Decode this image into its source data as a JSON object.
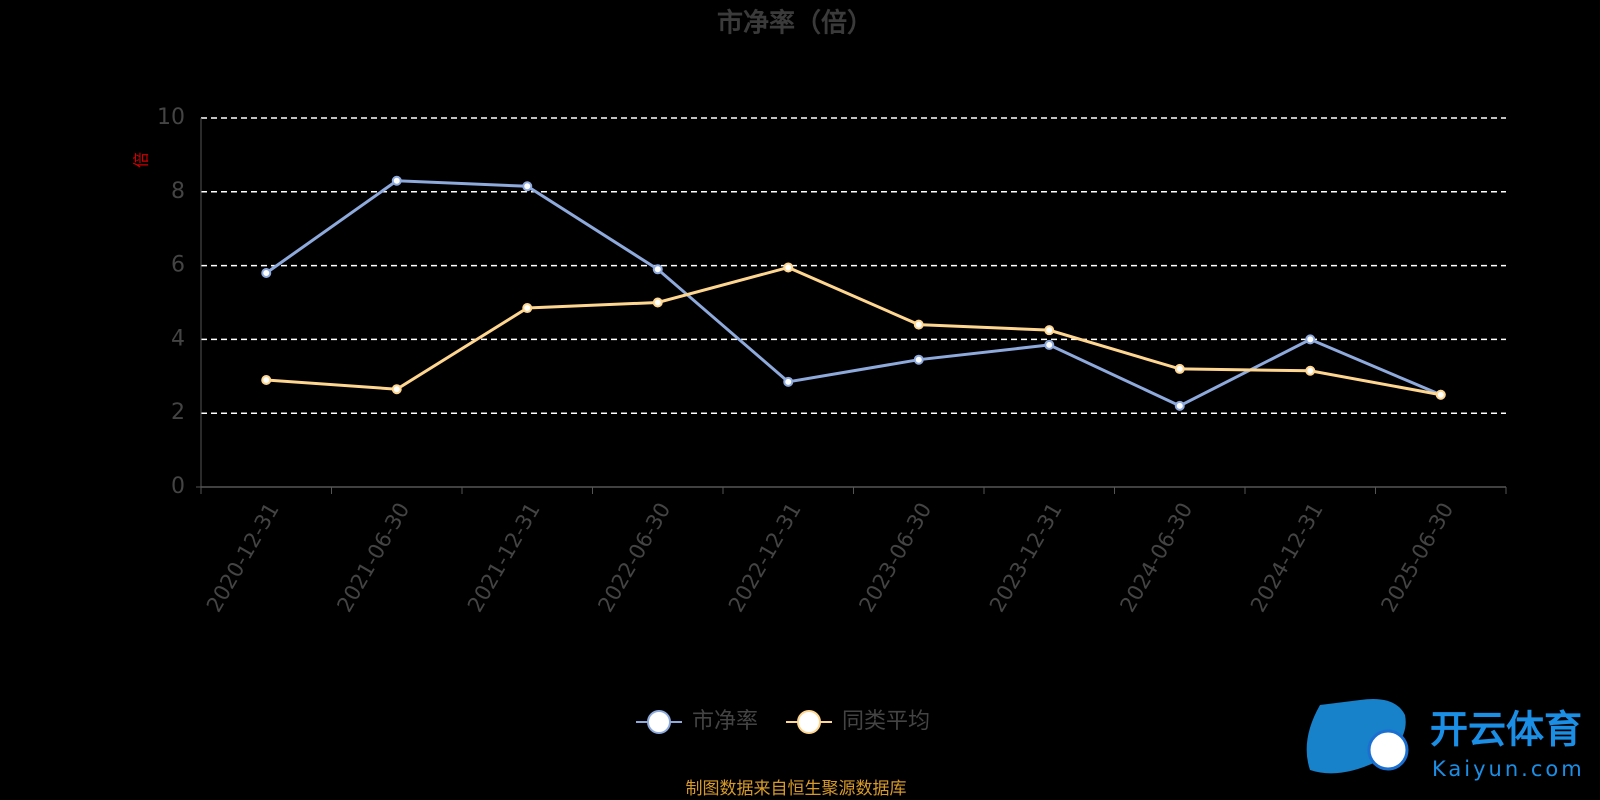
{
  "chart_data": {
    "type": "line",
    "title": "市净率（倍）",
    "y_label": "倍",
    "categories": [
      "2020-12-31",
      "2021-06-30",
      "2021-12-31",
      "2022-06-30",
      "2022-12-31",
      "2023-06-30",
      "2023-12-31",
      "2024-06-30",
      "2024-12-31",
      "2025-06-30"
    ],
    "series": [
      {
        "name": "市净率",
        "color": "#8eaadc",
        "values": [
          5.8,
          8.3,
          8.15,
          5.9,
          2.85,
          3.45,
          3.85,
          2.2,
          4.0,
          2.5
        ]
      },
      {
        "name": "同类平均",
        "color": "#ffd68f",
        "values": [
          2.9,
          2.65,
          4.85,
          5.0,
          5.95,
          4.4,
          4.25,
          3.2,
          3.15,
          2.5
        ]
      }
    ],
    "ylim": [
      0,
      10
    ],
    "yticks": [
      0,
      2,
      4,
      6,
      8,
      10
    ],
    "grid": true,
    "legend": "bottom",
    "footnote": "制图数据来自恒生聚源数据库"
  },
  "watermark": {
    "brand": "开云体育",
    "site": "Kaiyun.com"
  }
}
